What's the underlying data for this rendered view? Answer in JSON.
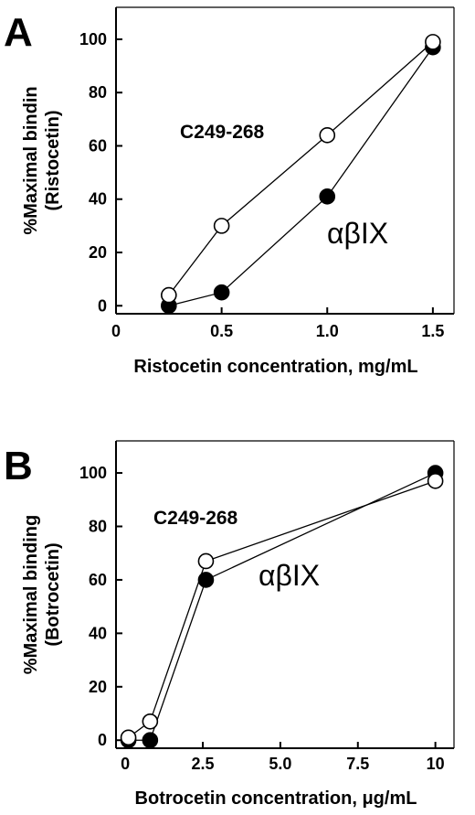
{
  "chart_data": [
    {
      "panel": "A",
      "type": "line",
      "xlabel": "Ristocetin concentration, mg/mL",
      "ylabel": "%Maximal bindin",
      "ylabel2": "(Ristocetin)",
      "xlim": [
        0,
        1.6
      ],
      "ylim": [
        -3,
        112
      ],
      "xticks": [
        "0",
        "0.5",
        "1.0",
        "1.5"
      ],
      "xtick_values": [
        0,
        0.5,
        1.0,
        1.5
      ],
      "yticks": [
        "0",
        "20",
        "40",
        "60",
        "80",
        "100"
      ],
      "ytick_values": [
        0,
        20,
        40,
        60,
        80,
        100
      ],
      "series": [
        {
          "name": "C249-268",
          "marker": "open",
          "x": [
            0.25,
            0.5,
            1.0,
            1.5
          ],
          "y": [
            4,
            30,
            64,
            99
          ]
        },
        {
          "name": "αβIX",
          "marker": "filled",
          "x": [
            0.25,
            0.5,
            1.0,
            1.5
          ],
          "y": [
            0,
            5,
            41,
            97
          ]
        }
      ]
    },
    {
      "panel": "B",
      "type": "line",
      "xlabel": "Botrocetin concentration, μg/mL",
      "ylabel": "%Maximal binding",
      "ylabel2": "(Botrocetin)",
      "xlim": [
        -0.3,
        10.6
      ],
      "ylim": [
        -3,
        112
      ],
      "xticks": [
        "0",
        "2.5",
        "5.0",
        "7.5",
        "10"
      ],
      "xtick_values": [
        0,
        2.5,
        5.0,
        7.5,
        10
      ],
      "yticks": [
        "0",
        "20",
        "40",
        "60",
        "80",
        "100"
      ],
      "ytick_values": [
        0,
        20,
        40,
        60,
        80,
        100
      ],
      "series": [
        {
          "name": "C249-268",
          "marker": "open",
          "x": [
            0.1,
            0.8,
            2.6,
            10
          ],
          "y": [
            1,
            7,
            67,
            97
          ]
        },
        {
          "name": "αβIX",
          "marker": "filled",
          "x": [
            0.1,
            0.8,
            2.6,
            10
          ],
          "y": [
            0,
            0,
            60,
            100
          ]
        }
      ]
    }
  ]
}
